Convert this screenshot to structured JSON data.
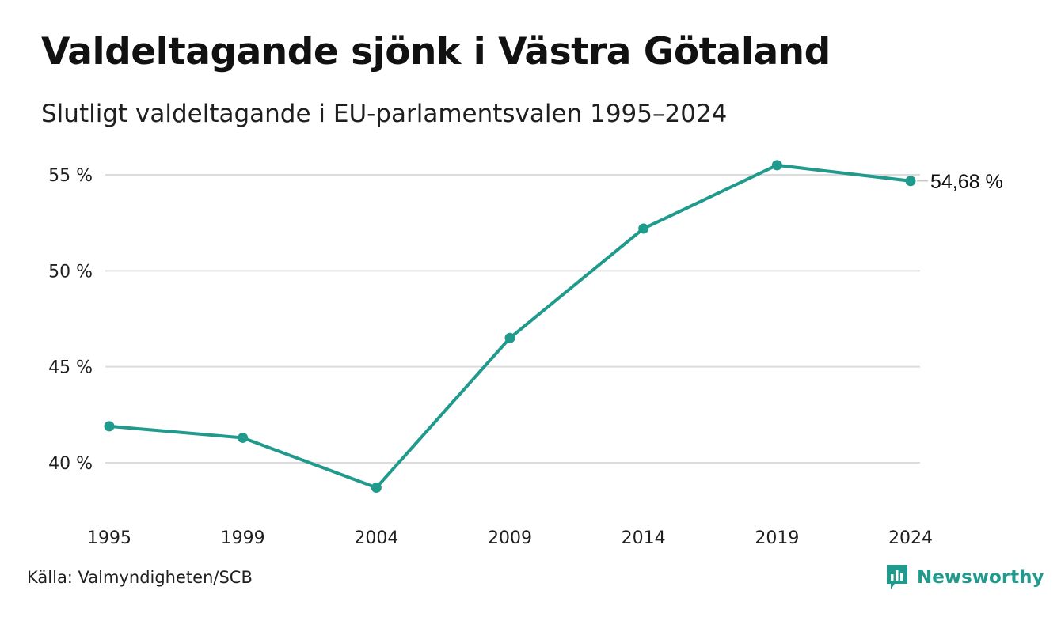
{
  "header": {
    "title": "Valdeltagande sjönk i Västra Götaland",
    "subtitle": "Slutligt valdeltagande i EU-parlamentsvalen 1995–2024"
  },
  "footer": {
    "source": "Källa: Valmyndigheten/SCB",
    "brand": "Newsworthy",
    "brand_icon": "bar-chart-speech-bubble-icon"
  },
  "colors": {
    "line": "#1f9a8c",
    "grid": "#dcdcdc",
    "text": "#1f1f1f",
    "brand": "#1f9a8c"
  },
  "chart_data": {
    "type": "line",
    "title": "Valdeltagande sjönk i Västra Götaland",
    "subtitle": "Slutligt valdeltagande i EU-parlamentsvalen 1995–2024",
    "xlabel": "",
    "ylabel": "",
    "x": [
      "1995",
      "1999",
      "2004",
      "2009",
      "2014",
      "2019",
      "2024"
    ],
    "series": [
      {
        "values": [
          41.9,
          41.3,
          38.7,
          46.5,
          52.2,
          55.5,
          54.68
        ]
      }
    ],
    "ylim": [
      37,
      56.5
    ],
    "yticks": [
      40,
      45,
      50,
      55
    ],
    "ytick_labels": [
      "40 %",
      "45 %",
      "50 %",
      "55 %"
    ],
    "grid": true,
    "legend": "none",
    "end_label": "54,68 %"
  }
}
